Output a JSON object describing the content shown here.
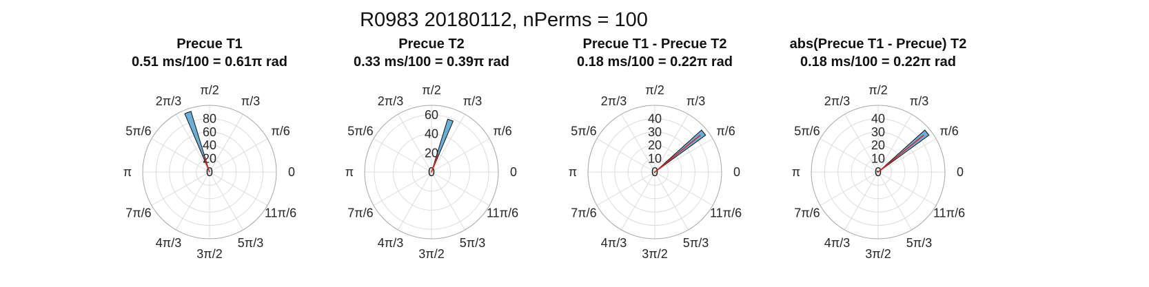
{
  "figure": {
    "suptitle": "R0983 20180112, nPerms = 100"
  },
  "theme": {
    "bar_color": "#6baed6",
    "mean_line_color": "#d62728",
    "null_color": "#111111"
  },
  "chart_data": [
    {
      "type": "polar-histogram",
      "title": "Precue T1",
      "subtitle": "0.51 ms/100 = 0.61π rad",
      "rlim": [
        0,
        100
      ],
      "rticks": [
        0,
        20,
        40,
        60,
        80
      ],
      "rtick_labels": [
        "0",
        "20",
        "40",
        "60",
        "80"
      ],
      "rtick_angle_deg": 90,
      "theta_tick_labels": [
        "0",
        "π/6",
        "π/3",
        "π/2",
        "2π/3",
        "5π/6",
        "π",
        "7π/6",
        "4π/3",
        "3π/2",
        "5π/3",
        "11π/6"
      ],
      "bars": [
        {
          "theta_deg": 110,
          "width_deg": 6,
          "value": 95
        }
      ],
      "mean_vector": {
        "theta_deg": 110,
        "length": 23
      },
      "null_points": []
    },
    {
      "type": "polar-histogram",
      "title": "Precue T2",
      "subtitle": "0.33 ms/100 = 0.39π rad",
      "rlim": [
        0,
        70
      ],
      "rticks": [
        0,
        20,
        40,
        60
      ],
      "rtick_labels": [
        "0",
        "20",
        "40",
        "60"
      ],
      "rtick_angle_deg": 90,
      "theta_tick_labels": [
        "0",
        "π/6",
        "π/3",
        "π/2",
        "2π/3",
        "5π/6",
        "π",
        "7π/6",
        "4π/3",
        "3π/2",
        "5π/3",
        "11π/6"
      ],
      "bars": [
        {
          "theta_deg": 70,
          "width_deg": 6,
          "value": 58
        }
      ],
      "mean_vector": {
        "theta_deg": 70,
        "length": 19
      },
      "null_points": [
        {
          "theta_deg": 180,
          "r": 0.5
        }
      ]
    },
    {
      "type": "polar-histogram",
      "title": "Precue T1 - Precue T2",
      "subtitle": "0.18 ms/100 = 0.22π rad",
      "rlim": [
        0,
        50
      ],
      "rticks": [
        0,
        10,
        20,
        30,
        40
      ],
      "rtick_labels": [
        "0",
        "10",
        "20",
        "30",
        "40"
      ],
      "rtick_angle_deg": 90,
      "theta_tick_labels": [
        "0",
        "π/6",
        "π/3",
        "π/2",
        "2π/3",
        "5π/6",
        "π",
        "7π/6",
        "4π/3",
        "3π/2",
        "5π/3",
        "11π/6"
      ],
      "bars": [
        {
          "theta_deg": 39,
          "width_deg": 6,
          "value": 47
        }
      ],
      "mean_vector": {
        "theta_deg": 39,
        "length": 44
      },
      "null_points": [
        {
          "theta_deg": 200,
          "r": 0.6
        },
        {
          "theta_deg": 250,
          "r": 0.4
        }
      ]
    },
    {
      "type": "polar-histogram",
      "title": "abs(Precue T1 - Precue) T2",
      "subtitle": "0.18 ms/100 = 0.22π rad",
      "rlim": [
        0,
        50
      ],
      "rticks": [
        0,
        10,
        20,
        30,
        40
      ],
      "rtick_labels": [
        "0",
        "10",
        "20",
        "30",
        "40"
      ],
      "rtick_angle_deg": 90,
      "theta_tick_labels": [
        "0",
        "π/6",
        "π/3",
        "π/2",
        "2π/3",
        "5π/6",
        "π",
        "7π/6",
        "4π/3",
        "3π/2",
        "5π/3",
        "11π/6"
      ],
      "bars": [
        {
          "theta_deg": 39,
          "width_deg": 6,
          "value": 47
        }
      ],
      "mean_vector": {
        "theta_deg": 39,
        "length": 44
      },
      "null_points": [
        {
          "theta_deg": 130,
          "r": 1.2
        },
        {
          "theta_deg": 160,
          "r": 0.8
        }
      ]
    }
  ]
}
